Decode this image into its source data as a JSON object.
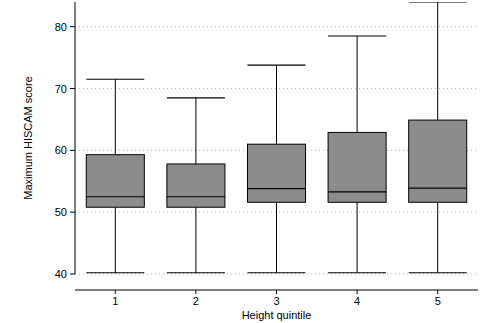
{
  "chart_data": {
    "type": "box",
    "x_label": "Height quintile",
    "y_label": "Maximum HISCAM score",
    "categories": [
      "1",
      "2",
      "3",
      "4",
      "5"
    ],
    "values": [
      {
        "min": 40.2,
        "q1": 50.8,
        "median": 52.5,
        "q3": 59.3,
        "max": 71.5
      },
      {
        "min": 40.2,
        "q1": 50.8,
        "median": 52.5,
        "q3": 57.8,
        "max": 68.5
      },
      {
        "min": 40.2,
        "q1": 51.6,
        "median": 53.8,
        "q3": 61.0,
        "max": 73.8
      },
      {
        "min": 40.2,
        "q1": 51.6,
        "median": 53.3,
        "q3": 62.9,
        "max": 78.5
      },
      {
        "min": 40.2,
        "q1": 51.6,
        "median": 53.9,
        "q3": 64.9,
        "max": 84.0
      }
    ],
    "color": "#8c8c8c",
    "ylim": [
      40,
      84
    ],
    "yticks": [
      40,
      50,
      60,
      70,
      80
    ],
    "grid": true
  }
}
